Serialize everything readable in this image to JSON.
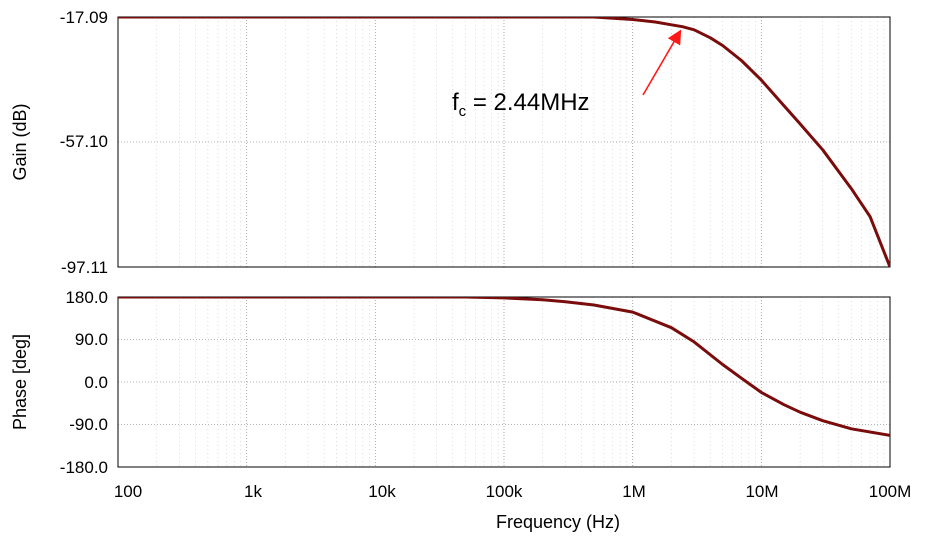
{
  "chart_data": [
    {
      "type": "line",
      "panel": "gain",
      "xlabel": "Frequency (Hz)",
      "ylabel": "Gain (dB)",
      "xscale": "log",
      "xlim": [
        100,
        100000000
      ],
      "ylim": [
        -97.11,
        -17.09
      ],
      "yticks": [
        "-17.09",
        "-57.10",
        "-97.11"
      ],
      "xticks": [
        "100",
        "1k",
        "10k",
        "100k",
        "1M",
        "10M",
        "100M"
      ],
      "grid": true,
      "x": [
        100,
        1000,
        10000,
        100000,
        500000,
        1000000,
        1500000,
        2000000,
        2440000,
        3000000,
        4000000,
        5000000,
        7000000,
        10000000,
        15000000,
        20000000,
        30000000,
        50000000,
        70000000,
        100000000
      ],
      "values": [
        -17.09,
        -17.09,
        -17.09,
        -17.09,
        -17.1,
        -17.9,
        -18.7,
        -19.6,
        -20.2,
        -21.2,
        -23.7,
        -26.2,
        -31.0,
        -37.3,
        -45.5,
        -51.3,
        -59.6,
        -72.0,
        -81.0,
        -97.11
      ],
      "annotation": {
        "text_main": "f",
        "text_sub": "c",
        "text_rest": " = 2.44MHz",
        "x": 2440000,
        "y": -20.2
      }
    },
    {
      "type": "line",
      "panel": "phase",
      "xlabel": "Frequency (Hz)",
      "ylabel": "Phase [deg]",
      "xscale": "log",
      "xlim": [
        100,
        100000000
      ],
      "ylim": [
        -180,
        180
      ],
      "yticks": [
        "180.0",
        "90.0",
        "0.0",
        "-90.0",
        "-180.0"
      ],
      "grid": true,
      "x": [
        100,
        1000,
        10000,
        50000,
        100000,
        200000,
        300000,
        500000,
        1000000,
        2000000,
        3000000,
        5000000,
        7000000,
        10000000,
        15000000,
        20000000,
        30000000,
        50000000,
        100000000
      ],
      "values": [
        180,
        180,
        180,
        180,
        178,
        174,
        170,
        163,
        148,
        115,
        85,
        37,
        8,
        -22,
        -48,
        -64,
        -82,
        -99,
        -113
      ]
    }
  ]
}
